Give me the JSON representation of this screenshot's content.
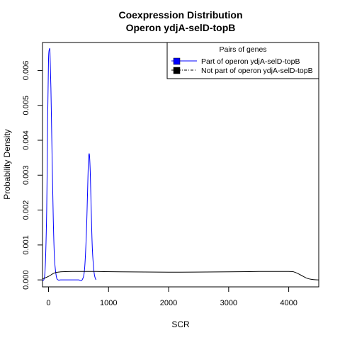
{
  "chart_data": {
    "type": "line",
    "title": [
      "Coexpression Distribution",
      "Operon ydjA-selD-topB"
    ],
    "xlabel": "SCR",
    "ylabel": "Probability Density",
    "xlim": [
      -100,
      4500
    ],
    "ylim": [
      -0.0002,
      0.0068
    ],
    "x_ticks": [
      0,
      1000,
      2000,
      3000,
      4000
    ],
    "y_ticks": [
      0.0,
      0.001,
      0.002,
      0.003,
      0.004,
      0.005,
      0.006
    ],
    "x_tick_labels": [
      "0",
      "1000",
      "2000",
      "3000",
      "4000"
    ],
    "y_tick_labels": [
      "0.000",
      "0.001",
      "0.002",
      "0.003",
      "0.004",
      "0.005",
      "0.006"
    ],
    "legend": {
      "title": "Pairs of genes",
      "placement": "top-right",
      "entries": [
        {
          "label": "Part of operon ydjA-selD-topB",
          "color": "#0000ff",
          "line": "solid"
        },
        {
          "label": "Not part of operon ydjA-selD-topB",
          "color": "#000000",
          "line": "dashed"
        }
      ]
    },
    "series": [
      {
        "name": "Part of operon ydjA-selD-topB",
        "color": "#0000ff",
        "x": [
          -110,
          -60,
          -30,
          -15,
          0,
          15,
          25,
          40,
          60,
          80,
          100,
          130,
          160,
          200,
          300,
          400,
          500,
          560,
          600,
          630,
          650,
          665,
          680,
          695,
          710,
          730,
          760,
          790
        ],
        "y": [
          0.0,
          0.0002,
          0.002,
          0.0045,
          0.0063,
          0.0066,
          0.0065,
          0.0055,
          0.0035,
          0.0017,
          0.0006,
          0.0001,
          0.0,
          0.0,
          0.0,
          0.0,
          0.0,
          0.0,
          0.0003,
          0.0013,
          0.0025,
          0.0034,
          0.0036,
          0.0031,
          0.0021,
          0.0009,
          0.0002,
          0.0
        ]
      },
      {
        "name": "Not part of operon ydjA-selD-topB",
        "color": "#000000",
        "x": [
          -200,
          -100,
          0,
          100,
          200,
          400,
          800,
          1200,
          2000,
          3000,
          3500,
          4000,
          4100,
          4200,
          4300,
          4400,
          4500
        ],
        "y": [
          0.0,
          3e-05,
          0.0001,
          0.0002,
          0.00023,
          0.00024,
          0.00024,
          0.00023,
          0.00022,
          0.00023,
          0.00024,
          0.00024,
          0.00022,
          0.00014,
          5e-05,
          1e-05,
          0.0
        ]
      }
    ]
  }
}
